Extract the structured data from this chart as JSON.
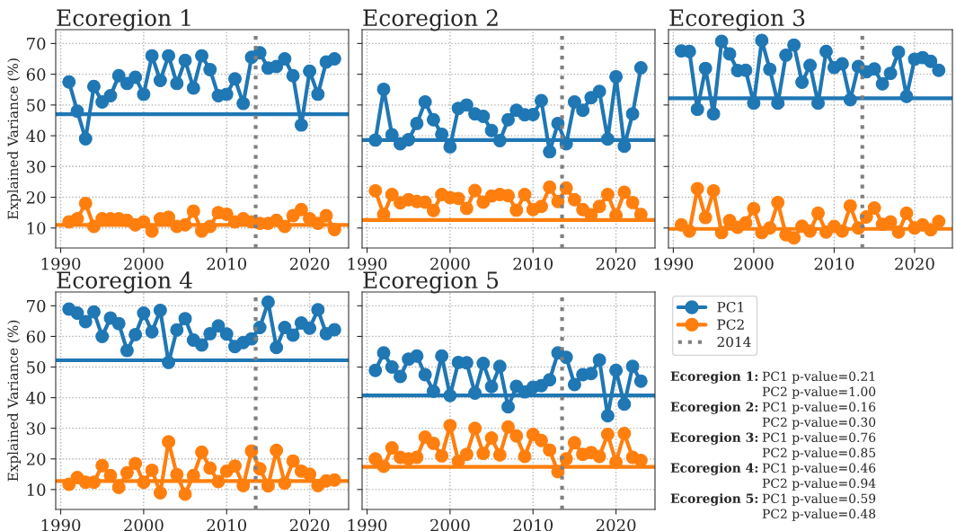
{
  "chart_data": [
    {
      "type": "line",
      "title": "Ecoregion 1",
      "ylabel": "Explained Variance (%)",
      "x": [
        1991,
        1992,
        1993,
        1994,
        1995,
        1996,
        1997,
        1998,
        1999,
        2000,
        2001,
        2002,
        2003,
        2004,
        2005,
        2006,
        2007,
        2008,
        2009,
        2010,
        2011,
        2012,
        2013,
        2014,
        2015,
        2016,
        2017,
        2018,
        2019,
        2020,
        2021,
        2022,
        2023
      ],
      "series": [
        {
          "name": "PC1",
          "color": "#1f77b4",
          "values": [
            57.5,
            48,
            39,
            56,
            51,
            53,
            59.5,
            57,
            59,
            53.5,
            66,
            58,
            66,
            57,
            64.5,
            55.5,
            66,
            61.5,
            53,
            53.5,
            58.5,
            50.5,
            65.5,
            67,
            62,
            62.5,
            65,
            59.5,
            43.5,
            61,
            53.5,
            64,
            65
          ]
        },
        {
          "name": "PC2",
          "color": "#ff7f0e",
          "values": [
            12,
            13,
            18,
            10.5,
            13,
            13,
            13,
            12.5,
            11,
            12,
            9,
            13,
            13.5,
            10.5,
            11,
            15.5,
            9,
            10.5,
            15,
            14.5,
            12,
            13,
            12,
            11.5,
            11.5,
            12.5,
            10.5,
            14,
            16,
            13,
            11.5,
            14,
            9.5
          ]
        }
      ],
      "ref_lines": [
        {
          "axis": "y",
          "value": 47,
          "color": "#1f77b4"
        },
        {
          "axis": "y",
          "value": 11,
          "color": "#ff7f0e"
        },
        {
          "axis": "x",
          "value": 2013.5,
          "label": "2014",
          "color": "#7f7f7f",
          "line_style": "dotted"
        }
      ],
      "xlim": [
        1989.4,
        2024.7
      ],
      "xticks": [
        1990,
        2000,
        2010,
        2020
      ],
      "ylim": [
        3.5,
        74.5
      ],
      "yticks": [
        10,
        20,
        30,
        40,
        50,
        60,
        70
      ],
      "grid": true,
      "legend": "bottom right",
      "marker": "circle",
      "line_style": "solid"
    },
    {
      "type": "line",
      "title": "Ecoregion 2",
      "x": [
        1991,
        1992,
        1993,
        1994,
        1995,
        1996,
        1997,
        1998,
        1999,
        2000,
        2001,
        2002,
        2003,
        2004,
        2005,
        2006,
        2007,
        2008,
        2009,
        2010,
        2011,
        2012,
        2013,
        2014,
        2015,
        2016,
        2017,
        2018,
        2019,
        2020,
        2021,
        2022,
        2023
      ],
      "series": [
        {
          "color": "#1f77b4",
          "values": [
            38.6,
            55.1,
            40.3,
            37.4,
            38.7,
            44,
            51,
            45.2,
            40.5,
            36.4,
            48.9,
            50,
            47.1,
            46.3,
            41.7,
            38.4,
            45.2,
            48.3,
            46.8,
            46.9,
            51.4,
            34.8,
            44,
            37.4,
            51,
            48.3,
            52.4,
            54.4,
            38.9,
            59.2,
            36.6,
            47.1,
            62.1
          ]
        },
        {
          "color": "#ff7f0e",
          "values": [
            22.1,
            14.4,
            20.9,
            18.2,
            19.2,
            18.6,
            18.4,
            15.7,
            20.9,
            19.9,
            19.6,
            16.4,
            22.2,
            18.4,
            20.4,
            20.9,
            20.5,
            15.8,
            20.9,
            16,
            17,
            23.3,
            18.6,
            23,
            19.2,
            16,
            14.3,
            17,
            20.9,
            14.1,
            21.6,
            18.3,
            14.4
          ]
        }
      ],
      "ref_lines": [
        {
          "axis": "y",
          "value": 38.6,
          "color": "#1f77b4"
        },
        {
          "axis": "y",
          "value": 12.6,
          "color": "#ff7f0e"
        },
        {
          "axis": "x",
          "value": 2013.5,
          "color": "#7f7f7f",
          "line_style": "dotted"
        }
      ],
      "xlim": [
        1989.4,
        2024.7
      ],
      "xticks": [
        1990,
        2000,
        2010,
        2020
      ],
      "ylim": [
        3.5,
        74.5
      ],
      "yticks": [
        10,
        20,
        30,
        40,
        50,
        60,
        70
      ],
      "tick_labels": "x",
      "grid": true,
      "marker": "circle",
      "line_style": "solid"
    },
    {
      "type": "line",
      "title": "Ecoregion 3",
      "x": [
        1991,
        1992,
        1993,
        1994,
        1995,
        1996,
        1997,
        1998,
        1999,
        2000,
        2001,
        2002,
        2003,
        2004,
        2005,
        2006,
        2007,
        2008,
        2009,
        2010,
        2011,
        2012,
        2013,
        2014,
        2015,
        2016,
        2017,
        2018,
        2019,
        2020,
        2021,
        2022,
        2023
      ],
      "series": [
        {
          "color": "#1f77b4",
          "values": [
            67.6,
            67.4,
            48.6,
            61.9,
            47.1,
            70.7,
            66.6,
            61.2,
            61.3,
            50.6,
            71,
            61.6,
            50.6,
            66.2,
            69.5,
            57.4,
            62.9,
            50.6,
            67.4,
            62.2,
            63.4,
            51.7,
            62.5,
            60.8,
            61.7,
            56.9,
            60.3,
            67.2,
            52.8,
            64.9,
            65.4,
            64.2,
            61.3
          ]
        },
        {
          "color": "#ff7f0e",
          "values": [
            11,
            9,
            22.8,
            13.4,
            22.1,
            8.5,
            12.4,
            10.2,
            11.7,
            16.3,
            8.5,
            10,
            18.3,
            7.8,
            6.8,
            10.6,
            9,
            14.8,
            8.7,
            10.5,
            9,
            17.2,
            10,
            13.6,
            16.5,
            11.2,
            12,
            8.7,
            14.8,
            10,
            11,
            9.4,
            12.1
          ]
        }
      ],
      "ref_lines": [
        {
          "axis": "y",
          "value": 52.2,
          "color": "#1f77b4"
        },
        {
          "axis": "y",
          "value": 9.7,
          "color": "#ff7f0e"
        },
        {
          "axis": "x",
          "value": 2013.5,
          "color": "#7f7f7f",
          "line_style": "dotted"
        }
      ],
      "xlim": [
        1989.4,
        2024.7
      ],
      "xticks": [
        1990,
        2000,
        2010,
        2020
      ],
      "ylim": [
        3.5,
        74.5
      ],
      "yticks": [
        10,
        20,
        30,
        40,
        50,
        60,
        70
      ],
      "tick_labels": "x",
      "grid": true,
      "marker": "circle",
      "line_style": "solid"
    },
    {
      "type": "line",
      "title": "Ecoregion 4",
      "ylabel": "Explained Variance (%)",
      "x": [
        1991,
        1992,
        1993,
        1994,
        1995,
        1996,
        1997,
        1998,
        1999,
        2000,
        2001,
        2002,
        2003,
        2004,
        2005,
        2006,
        2007,
        2008,
        2009,
        2010,
        2011,
        2012,
        2013,
        2014,
        2015,
        2016,
        2017,
        2018,
        2019,
        2020,
        2021,
        2022,
        2023
      ],
      "series": [
        {
          "color": "#1f77b4",
          "values": [
            68.9,
            67.6,
            64.8,
            68,
            60,
            66,
            64.2,
            55.4,
            60.6,
            67.6,
            61.5,
            68.5,
            51.5,
            62.1,
            65.8,
            58.8,
            57.2,
            60.9,
            63.4,
            60.8,
            56.7,
            58,
            59.2,
            62.9,
            71.2,
            56.4,
            62.9,
            60.4,
            64.4,
            62.7,
            68.7,
            60.9,
            62.2
          ]
        },
        {
          "color": "#ff7f0e",
          "values": [
            11.7,
            13.9,
            12.4,
            12.4,
            17.8,
            14.6,
            10.7,
            15.5,
            18.5,
            12.4,
            16.3,
            8.9,
            25.6,
            14.9,
            8.5,
            14.6,
            22.2,
            17,
            12.6,
            16,
            17.7,
            11.3,
            22.6,
            16.8,
            11.2,
            22.8,
            12.1,
            19.3,
            16,
            15,
            11.3,
            12.8,
            13.1
          ]
        }
      ],
      "ref_lines": [
        {
          "axis": "y",
          "value": 52.2,
          "color": "#1f77b4"
        },
        {
          "axis": "y",
          "value": 12.8,
          "color": "#ff7f0e"
        },
        {
          "axis": "x",
          "value": 2013.5,
          "color": "#7f7f7f",
          "line_style": "dotted"
        }
      ],
      "xlim": [
        1989.4,
        2024.7
      ],
      "xticks": [
        1990,
        2000,
        2010,
        2020
      ],
      "ylim": [
        3.5,
        74.5
      ],
      "yticks": [
        10,
        20,
        30,
        40,
        50,
        60,
        70
      ],
      "grid": true,
      "marker": "circle",
      "line_style": "solid"
    },
    {
      "type": "line",
      "title": "Ecoregion 5",
      "x": [
        1991,
        1992,
        1993,
        1994,
        1995,
        1996,
        1997,
        1998,
        1999,
        2000,
        2001,
        2002,
        2003,
        2004,
        2005,
        2006,
        2007,
        2008,
        2009,
        2010,
        2011,
        2012,
        2013,
        2014,
        2015,
        2016,
        2017,
        2018,
        2019,
        2020,
        2021,
        2022,
        2023
      ],
      "series": [
        {
          "color": "#1f77b4",
          "values": [
            48.9,
            54.6,
            50,
            46.9,
            52.6,
            53.6,
            47.5,
            42.1,
            53.6,
            40.7,
            51.5,
            51.4,
            41.5,
            51.2,
            43.6,
            50.2,
            37,
            43.7,
            41.9,
            43.4,
            43.9,
            45.8,
            54.6,
            53.2,
            44.3,
            47.5,
            47.9,
            52.3,
            34.1,
            48.9,
            37.9,
            50.2,
            45.4
          ]
        },
        {
          "color": "#ff7f0e",
          "values": [
            20,
            17.6,
            23.6,
            20.5,
            20,
            20.5,
            27.1,
            25.1,
            21,
            30.9,
            19.2,
            21.5,
            30,
            21.8,
            26.8,
            21.3,
            30.4,
            27.5,
            20.8,
            28,
            26,
            22.9,
            15.8,
            20,
            25.3,
            21.5,
            22.1,
            20.8,
            28,
            19,
            28.3,
            20.5,
            19.5
          ]
        }
      ],
      "ref_lines": [
        {
          "axis": "y",
          "value": 40.7,
          "color": "#1f77b4"
        },
        {
          "axis": "y",
          "value": 17.4,
          "color": "#ff7f0e"
        },
        {
          "axis": "x",
          "value": 2013.5,
          "color": "#7f7f7f",
          "line_style": "dotted"
        }
      ],
      "xlim": [
        1989.4,
        2024.7
      ],
      "xticks": [
        1990,
        2000,
        2010,
        2020
      ],
      "ylim": [
        3.5,
        74.5
      ],
      "yticks": [
        10,
        20,
        30,
        40,
        50,
        60,
        70
      ],
      "tick_labels": "x",
      "grid": true,
      "marker": "circle",
      "line_style": "solid"
    },
    {
      "type": "other",
      "annotations": [
        "Ecoregion 1:",
        "PC1 p-value=0.21",
        "PC2 p-value=1.00",
        "Ecoregion 2:",
        "PC1 p-value=0.16",
        "PC2 p-value=0.30",
        "Ecoregion 3:",
        "PC1 p-value=0.76",
        "PC2 p-value=0.85",
        "Ecoregion 4:",
        "PC1 p-value=0.46",
        "PC2 p-value=0.94",
        "Ecoregion 5:",
        "PC1 p-value=0.59",
        "PC2 p-value=0.48"
      ]
    }
  ]
}
